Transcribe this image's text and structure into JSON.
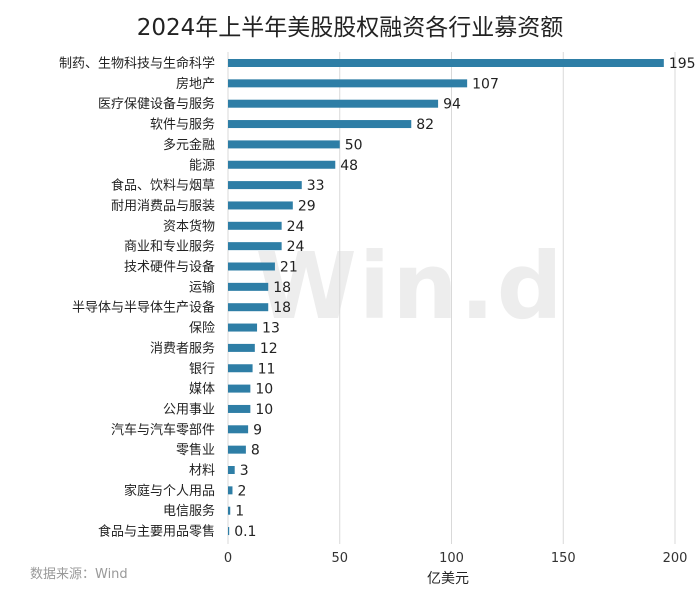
{
  "chart_data": {
    "type": "bar",
    "orientation": "horizontal",
    "title": "2024年上半年美股股权融资各行业募资额",
    "xlabel": "亿美元",
    "ylabel": "",
    "xlim": [
      0,
      200
    ],
    "xticks": [
      0,
      50,
      100,
      150,
      200
    ],
    "grid": true,
    "color": "#2e7ea6",
    "categories": [
      "制药、生物科技与生命科学",
      "房地产",
      "医疗保健设备与服务",
      "软件与服务",
      "多元金融",
      "能源",
      "食品、饮料与烟草",
      "耐用消费品与服装",
      "资本货物",
      "商业和专业服务",
      "技术硬件与设备",
      "运输",
      "半导体与半导体生产设备",
      "保险",
      "消费者服务",
      "银行",
      "媒体",
      "公用事业",
      "汽车与汽车零部件",
      "零售业",
      "材料",
      "家庭与个人用品",
      "电信服务",
      "食品与主要用品零售"
    ],
    "values": [
      195,
      107,
      94,
      82,
      50,
      48,
      33,
      29,
      24,
      24,
      21,
      18,
      18,
      13,
      12,
      11,
      10,
      10,
      9,
      8,
      3,
      2,
      1,
      0.1
    ]
  },
  "watermark": "Win.d",
  "source": "数据来源：Wind"
}
